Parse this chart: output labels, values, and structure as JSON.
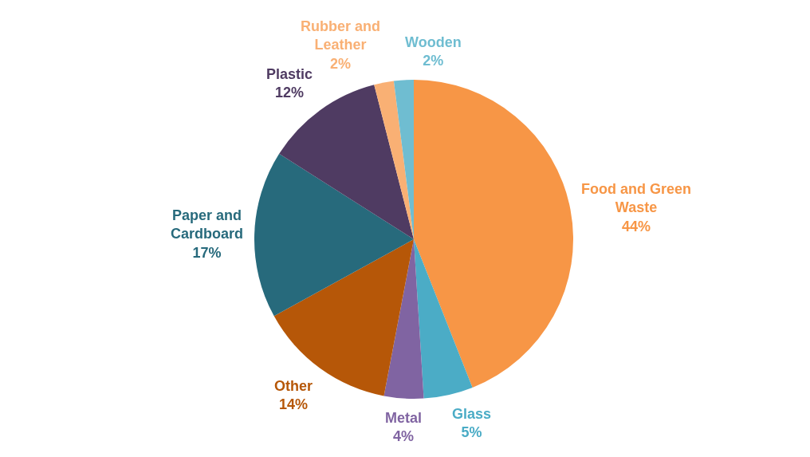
{
  "chart_data": {
    "type": "pie",
    "categories": [
      "Food and Green Waste",
      "Glass",
      "Metal",
      "Other",
      "Paper and Cardboard",
      "Plastic",
      "Rubber and Leather",
      "Wooden"
    ],
    "values": [
      44,
      5,
      4,
      14,
      17,
      12,
      2,
      2
    ],
    "value_labels": [
      "44%",
      "5%",
      "4%",
      "14%",
      "17%",
      "12%",
      "2%",
      "2%"
    ],
    "colors": [
      "#f79646",
      "#4bacc6",
      "#8064a2",
      "#b65708",
      "#276a7c",
      "#4f3b62",
      "#f9b074",
      "#6fbdd1"
    ],
    "legend": false
  }
}
